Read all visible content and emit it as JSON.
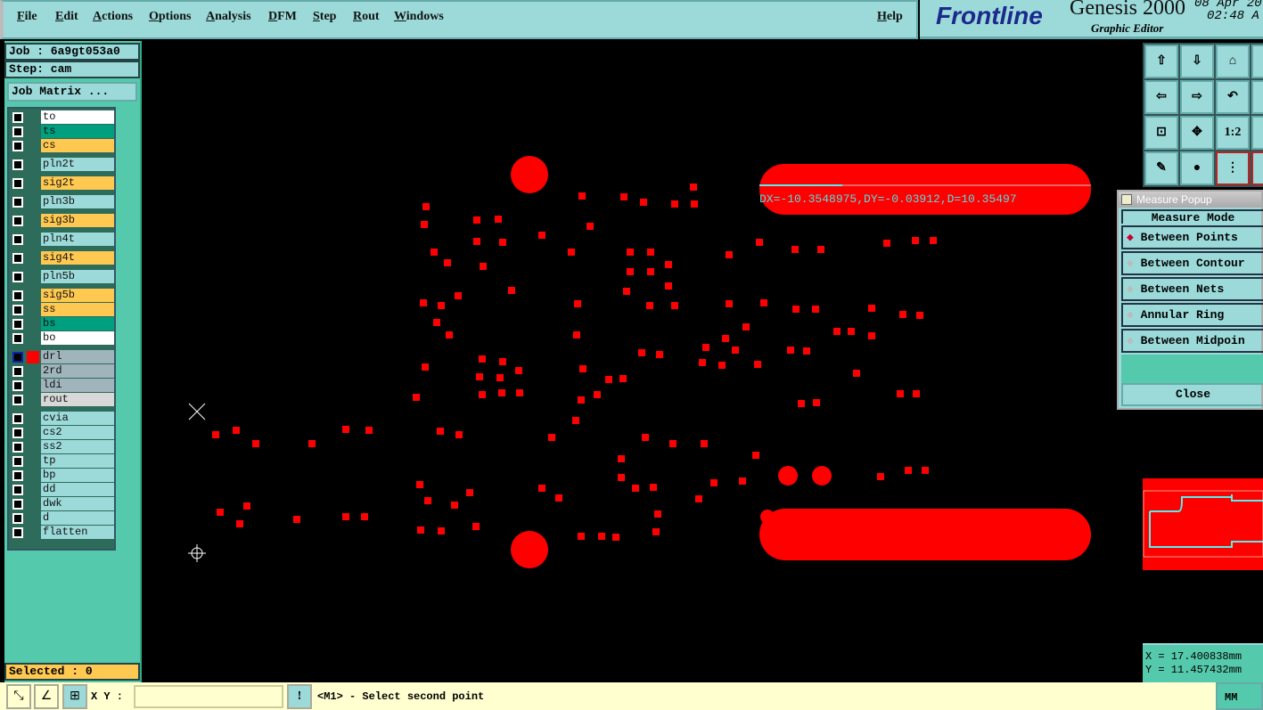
{
  "menu": [
    "File",
    "Edit",
    "Actions",
    "Options",
    "Analysis",
    "DFM",
    "Step",
    "Rout",
    "Windows"
  ],
  "help": "Help",
  "logo": {
    "brand": "Frontline",
    "product": "Genesis 2000",
    "subtitle": "Graphic Editor",
    "date": "08 Apr 20",
    "time": "02:48 A"
  },
  "job": "Job : 6a9gt053a0",
  "step": "Step: cam",
  "job_matrix": "Job Matrix ...",
  "layers": [
    {
      "name": "to",
      "color": "#ffffff"
    },
    {
      "name": "ts",
      "color": "#009f7f"
    },
    {
      "name": "cs",
      "color": "#ffc850"
    },
    {
      "name": "pln2t",
      "color": "#9cdada"
    },
    {
      "name": "sig2t",
      "color": "#ffc850"
    },
    {
      "name": "pln3b",
      "color": "#9cdada"
    },
    {
      "name": "sig3b",
      "color": "#ffc850"
    },
    {
      "name": "pln4t",
      "color": "#9cdada"
    },
    {
      "name": "sig4t",
      "color": "#ffc850"
    },
    {
      "name": "pln5b",
      "color": "#9cdada"
    },
    {
      "name": "sig5b",
      "color": "#ffc850"
    },
    {
      "name": "ss",
      "color": "#ffc850"
    },
    {
      "name": "bs",
      "color": "#009f7f"
    },
    {
      "name": "bo",
      "color": "#ffffff"
    },
    {
      "name": "drl",
      "color": "#a0b4bc",
      "active": true
    },
    {
      "name": "2rd",
      "color": "#a0b4bc"
    },
    {
      "name": "ldi",
      "color": "#a0b4bc"
    },
    {
      "name": "rout",
      "color": "#d8d8d8"
    },
    {
      "name": "cvia",
      "color": "#9cdada"
    },
    {
      "name": "cs2",
      "color": "#9cdada"
    },
    {
      "name": "ss2",
      "color": "#9cdada"
    },
    {
      "name": "tp",
      "color": "#9cdada"
    },
    {
      "name": "bp",
      "color": "#9cdada"
    },
    {
      "name": "dd",
      "color": "#9cdada"
    },
    {
      "name": "dwk",
      "color": "#9cdada"
    },
    {
      "name": "d",
      "color": "#9cdada"
    },
    {
      "name": "flatten",
      "color": "#9cdada"
    }
  ],
  "selected": "Selected : 0",
  "measure_readout": "DX=-10.3548975,DY=-0.03912,D=10.35497",
  "popup": {
    "title": "Measure Popup",
    "mode_label": "Measure Mode",
    "modes": [
      "Between Points",
      "Between Contour",
      "Between Nets",
      "Annular Ring",
      "Between Midpoin"
    ],
    "selected_mode": "Between Points",
    "close": "Close"
  },
  "coords": {
    "x": "X = 17.400838mm",
    "y": "Y = 11.457432mm"
  },
  "bottom": {
    "xy_label": "X Y :",
    "xy_value": "",
    "prompt": "<M1> - Select second point",
    "units": "MM"
  },
  "colors": {
    "feature": "#ff0000",
    "panel": "#9cdada",
    "measure": "#55dddd"
  }
}
